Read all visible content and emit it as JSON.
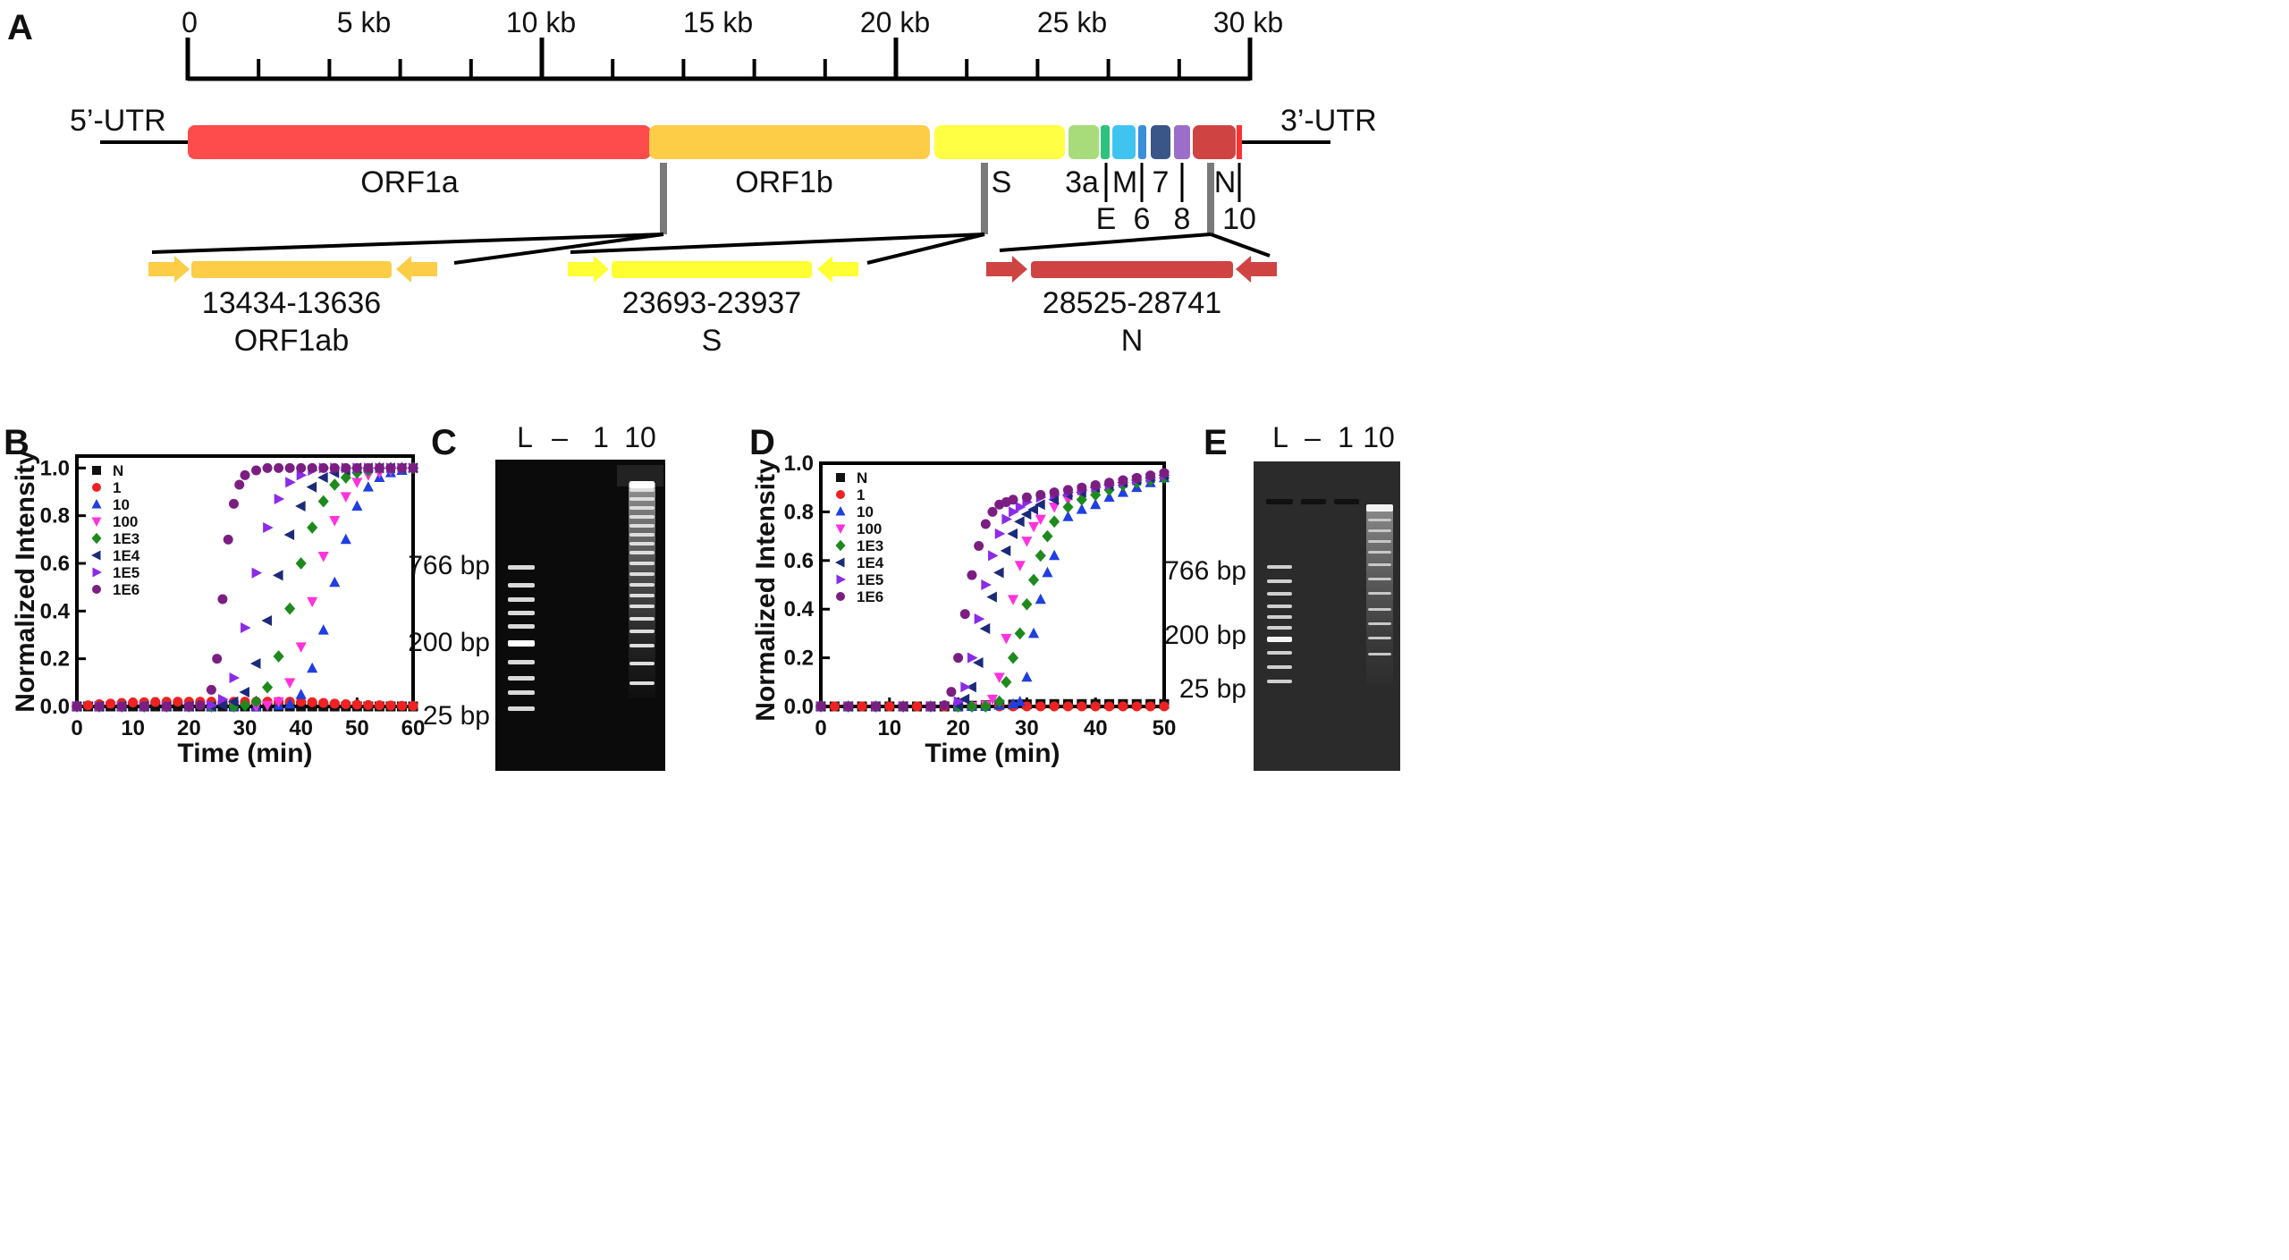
{
  "colors": {
    "orf1a": "#fe4b4b",
    "orf1b": "#fdcd48",
    "s": "#ffff44",
    "orf3a": "#a8db79",
    "e": "#2ec27e",
    "m": "#3fc4f0",
    "orf6": "#3a8fdc",
    "orf7": "#3a5588",
    "orf8": "#9b6fc9",
    "n": "#d04343",
    "orf10": "#ff3030",
    "amp_orf1ab": "#fdcd48",
    "amp_s": "#ffff33",
    "amp_n": "#d04343",
    "series": {
      "N": "#111111",
      "1": "#ee2222",
      "10": "#1f3fe0",
      "100": "#ff33dd",
      "1E3": "#1e8a1e",
      "1E4": "#1c2a7a",
      "1E5": "#8b2be8",
      "1E6": "#7b1e82"
    }
  },
  "panel_a": {
    "letter": "A",
    "ruler_labels": [
      "0",
      "5 kb",
      "10 kb",
      "15 kb",
      "20 kb",
      "25 kb",
      "30 kb"
    ],
    "utr5": "5’-UTR",
    "utr3": "3’-UTR",
    "gene_labels": {
      "orf1a": "ORF1a",
      "orf1b": "ORF1b",
      "s": "S",
      "orf3a": "3a",
      "m": "M",
      "orf7": "7",
      "n": "N",
      "e": "E",
      "orf6": "6",
      "orf8": "8",
      "orf10": "10"
    },
    "amplicons": [
      {
        "range": "13434-13636",
        "name": "ORF1ab"
      },
      {
        "range": "23693-23937",
        "name": "S"
      },
      {
        "range": "28525-28741",
        "name": "N"
      }
    ]
  },
  "chart_data": [
    {
      "panel": "B",
      "type": "scatter",
      "xlabel": "Time (min)",
      "ylabel": "Normalized Intensity",
      "xlim": [
        0,
        60
      ],
      "ylim": [
        0,
        1.05
      ],
      "xticks": [
        0,
        10,
        20,
        30,
        40,
        50,
        60
      ],
      "yticks": [
        0.0,
        0.2,
        0.4,
        0.6,
        0.8,
        1.0
      ],
      "series": [
        {
          "name": "N",
          "marker": "square",
          "x": [
            0,
            2,
            4,
            6,
            8,
            10,
            12,
            14,
            16,
            18,
            20,
            22,
            24,
            26,
            28,
            30,
            32,
            34,
            36,
            38,
            40,
            42,
            44,
            46,
            48,
            50,
            52,
            54,
            56,
            58,
            60
          ],
          "y": [
            0,
            0,
            0,
            0,
            0,
            0,
            0,
            0,
            0,
            0,
            0,
            0,
            0,
            0,
            0,
            0,
            0,
            0,
            0,
            0,
            0,
            0,
            0,
            0,
            0,
            0,
            0,
            0,
            0,
            0,
            0
          ]
        },
        {
          "name": "1",
          "marker": "circle",
          "x": [
            0,
            2,
            4,
            6,
            8,
            10,
            12,
            14,
            16,
            18,
            20,
            22,
            24,
            26,
            28,
            30,
            32,
            34,
            36,
            38,
            40,
            42,
            44,
            46,
            48,
            50,
            52,
            54,
            56,
            58,
            60
          ],
          "y": [
            0.0,
            0.005,
            0.01,
            0.012,
            0.015,
            0.017,
            0.018,
            0.019,
            0.02,
            0.02,
            0.02,
            0.02,
            0.02,
            0.02,
            0.02,
            0.02,
            0.02,
            0.02,
            0.02,
            0.02,
            0.02,
            0.018,
            0.015,
            0.012,
            0.01,
            0.008,
            0.006,
            0.005,
            0.004,
            0.003,
            0.002
          ]
        },
        {
          "name": "10",
          "marker": "triangle-up",
          "x": [
            0,
            4,
            8,
            12,
            16,
            20,
            24,
            28,
            32,
            36,
            38,
            40,
            42,
            44,
            46,
            48,
            50,
            52,
            54,
            56,
            58,
            60
          ],
          "y": [
            0,
            0,
            0,
            0,
            0,
            0,
            0,
            0,
            0,
            0.005,
            0.01,
            0.05,
            0.16,
            0.32,
            0.52,
            0.7,
            0.84,
            0.92,
            0.96,
            0.98,
            0.99,
            1.0
          ]
        },
        {
          "name": "100",
          "marker": "triangle-down",
          "x": [
            0,
            4,
            8,
            12,
            16,
            20,
            24,
            28,
            32,
            34,
            36,
            38,
            40,
            42,
            44,
            46,
            48,
            50,
            52,
            54,
            56,
            58,
            60
          ],
          "y": [
            0,
            0,
            0,
            0,
            0,
            0,
            0,
            0,
            0,
            0.005,
            0.02,
            0.1,
            0.25,
            0.44,
            0.63,
            0.78,
            0.88,
            0.94,
            0.97,
            0.98,
            0.99,
            1.0,
            1.0
          ]
        },
        {
          "name": "1E3",
          "marker": "diamond",
          "x": [
            0,
            4,
            8,
            12,
            16,
            20,
            24,
            28,
            30,
            32,
            34,
            36,
            38,
            40,
            42,
            44,
            46,
            48,
            50,
            52,
            54,
            56,
            58,
            60
          ],
          "y": [
            0,
            0,
            0,
            0,
            0,
            0,
            0,
            0,
            0.005,
            0.02,
            0.08,
            0.21,
            0.41,
            0.6,
            0.75,
            0.86,
            0.93,
            0.96,
            0.98,
            0.99,
            1.0,
            1.0,
            1.0,
            1.0
          ]
        },
        {
          "name": "1E4",
          "marker": "triangle-left",
          "x": [
            0,
            4,
            8,
            12,
            16,
            20,
            24,
            26,
            28,
            30,
            32,
            34,
            36,
            38,
            40,
            42,
            44,
            46,
            48,
            50,
            52,
            54,
            56,
            58,
            60
          ],
          "y": [
            0,
            0,
            0,
            0,
            0,
            0,
            0,
            0.005,
            0.02,
            0.06,
            0.18,
            0.36,
            0.55,
            0.72,
            0.84,
            0.92,
            0.96,
            0.98,
            0.99,
            1.0,
            1.0,
            1.0,
            1.0,
            1.0,
            1.0
          ]
        },
        {
          "name": "1E5",
          "marker": "triangle-right",
          "x": [
            0,
            4,
            8,
            12,
            16,
            20,
            24,
            26,
            28,
            30,
            32,
            34,
            36,
            38,
            40,
            42,
            44,
            46,
            48,
            50,
            52,
            54,
            56,
            58,
            60
          ],
          "y": [
            0,
            0,
            0,
            0,
            0,
            0,
            0.005,
            0.03,
            0.12,
            0.33,
            0.56,
            0.75,
            0.87,
            0.94,
            0.97,
            0.99,
            1.0,
            1.0,
            1.0,
            1.0,
            1.0,
            1.0,
            1.0,
            1.0,
            1.0
          ]
        },
        {
          "name": "1E6",
          "marker": "circle",
          "x": [
            0,
            4,
            8,
            12,
            16,
            20,
            22,
            24,
            25,
            26,
            27,
            28,
            29,
            30,
            32,
            34,
            36,
            38,
            40,
            42,
            44,
            46,
            48,
            50,
            52,
            54,
            56,
            58,
            60
          ],
          "y": [
            0,
            0,
            0,
            0,
            0,
            0,
            0.005,
            0.07,
            0.2,
            0.45,
            0.7,
            0.85,
            0.93,
            0.97,
            0.99,
            1.0,
            1.0,
            1.0,
            1.0,
            1.0,
            1.0,
            1.0,
            1.0,
            1.0,
            1.0,
            1.0,
            1.0,
            1.0,
            1.0
          ]
        }
      ]
    },
    {
      "panel": "D",
      "type": "scatter",
      "xlabel": "Time (min)",
      "ylabel": "Normalized Intensity",
      "xlim": [
        0,
        50
      ],
      "ylim": [
        0,
        1.0
      ],
      "xticks": [
        0,
        10,
        20,
        30,
        40,
        50
      ],
      "yticks": [
        0.0,
        0.2,
        0.4,
        0.6,
        0.8,
        1.0
      ],
      "series": [
        {
          "name": "N",
          "marker": "square",
          "x": [
            0,
            2,
            4,
            6,
            8,
            10,
            12,
            14,
            16,
            18,
            20,
            22,
            24,
            26,
            28,
            30,
            32,
            34,
            36,
            38,
            40,
            42,
            44,
            46,
            48,
            50
          ],
          "y": [
            0,
            0,
            0,
            0,
            0,
            0,
            0,
            0,
            0,
            0,
            0,
            0.003,
            0.005,
            0.007,
            0.008,
            0.009,
            0.01,
            0.01,
            0.01,
            0.01,
            0.01,
            0.01,
            0.01,
            0.01,
            0.01,
            0.01
          ]
        },
        {
          "name": "1",
          "marker": "circle",
          "x": [
            0,
            2,
            4,
            6,
            8,
            10,
            12,
            14,
            16,
            18,
            20,
            22,
            24,
            26,
            28,
            30,
            32,
            34,
            36,
            38,
            40,
            42,
            44,
            46,
            48,
            50
          ],
          "y": [
            0,
            0,
            0,
            0,
            0,
            0,
            0,
            0,
            0,
            0,
            0,
            0,
            0,
            0,
            0,
            0,
            0,
            0,
            0,
            0,
            0,
            0,
            0,
            0,
            0,
            0
          ]
        },
        {
          "name": "10",
          "marker": "triangle-up",
          "x": [
            0,
            4,
            8,
            12,
            16,
            20,
            22,
            24,
            26,
            28,
            29,
            30,
            31,
            32,
            33,
            34,
            36,
            38,
            40,
            42,
            44,
            46,
            48,
            50
          ],
          "y": [
            0,
            0,
            0,
            0,
            0,
            0,
            0,
            0,
            0.005,
            0.01,
            0.02,
            0.12,
            0.3,
            0.44,
            0.55,
            0.62,
            0.78,
            0.81,
            0.83,
            0.86,
            0.88,
            0.9,
            0.92,
            0.94
          ]
        },
        {
          "name": "100",
          "marker": "triangle-down",
          "x": [
            0,
            4,
            8,
            12,
            16,
            20,
            22,
            24,
            25,
            26,
            27,
            28,
            29,
            30,
            31,
            32,
            34,
            36,
            38,
            40,
            42,
            44,
            46,
            48,
            50
          ],
          "y": [
            0,
            0,
            0,
            0,
            0,
            0,
            0,
            0.005,
            0.03,
            0.12,
            0.28,
            0.44,
            0.58,
            0.68,
            0.74,
            0.77,
            0.82,
            0.85,
            0.87,
            0.89,
            0.9,
            0.92,
            0.93,
            0.94,
            0.95
          ]
        },
        {
          "name": "1E3",
          "marker": "diamond",
          "x": [
            0,
            4,
            8,
            12,
            16,
            20,
            22,
            24,
            26,
            27,
            28,
            29,
            30,
            31,
            32,
            33,
            34,
            36,
            38,
            40,
            42,
            44,
            46,
            48,
            50
          ],
          "y": [
            0,
            0,
            0,
            0,
            0,
            0,
            0,
            0,
            0.02,
            0.1,
            0.2,
            0.3,
            0.42,
            0.52,
            0.62,
            0.7,
            0.76,
            0.82,
            0.85,
            0.87,
            0.89,
            0.91,
            0.92,
            0.93,
            0.94
          ]
        },
        {
          "name": "1E4",
          "marker": "triangle-left",
          "x": [
            0,
            4,
            8,
            12,
            16,
            20,
            21,
            22,
            23,
            24,
            25,
            26,
            27,
            28,
            29,
            30,
            31,
            32,
            34,
            36,
            38,
            40,
            42,
            44,
            46,
            48,
            50
          ],
          "y": [
            0,
            0,
            0,
            0,
            0,
            0.005,
            0.03,
            0.08,
            0.18,
            0.32,
            0.45,
            0.55,
            0.64,
            0.71,
            0.76,
            0.79,
            0.81,
            0.83,
            0.85,
            0.87,
            0.88,
            0.9,
            0.91,
            0.92,
            0.93,
            0.94,
            0.95
          ]
        },
        {
          "name": "1E5",
          "marker": "triangle-right",
          "x": [
            0,
            4,
            8,
            12,
            16,
            20,
            21,
            22,
            23,
            24,
            25,
            26,
            27,
            28,
            29,
            30,
            32,
            34,
            36,
            38,
            40,
            42,
            44,
            46,
            48,
            50
          ],
          "y": [
            0,
            0,
            0,
            0,
            0,
            0.02,
            0.08,
            0.2,
            0.36,
            0.5,
            0.62,
            0.71,
            0.77,
            0.8,
            0.82,
            0.84,
            0.86,
            0.87,
            0.88,
            0.89,
            0.9,
            0.91,
            0.92,
            0.93,
            0.94,
            0.95
          ]
        },
        {
          "name": "1E6",
          "marker": "circle",
          "x": [
            0,
            4,
            8,
            12,
            16,
            18,
            19,
            20,
            21,
            22,
            23,
            24,
            25,
            26,
            27,
            28,
            30,
            32,
            34,
            36,
            38,
            40,
            42,
            44,
            46,
            48,
            50
          ],
          "y": [
            0,
            0,
            0,
            0,
            0,
            0.005,
            0.06,
            0.2,
            0.38,
            0.54,
            0.66,
            0.75,
            0.8,
            0.83,
            0.84,
            0.85,
            0.86,
            0.87,
            0.88,
            0.89,
            0.9,
            0.91,
            0.92,
            0.93,
            0.94,
            0.95,
            0.96
          ]
        }
      ]
    }
  ],
  "panel_b": {
    "letter": "B"
  },
  "panel_d": {
    "letter": "D"
  },
  "gel_c": {
    "letter": "C",
    "lanes": [
      "L",
      "–",
      "1",
      "10"
    ],
    "markers": [
      "766 bp",
      "200 bp",
      "25 bp"
    ]
  },
  "gel_e": {
    "letter": "E",
    "lanes": [
      "L",
      "–",
      "1",
      "10"
    ],
    "markers": [
      "766 bp",
      "200 bp",
      "25 bp"
    ]
  }
}
